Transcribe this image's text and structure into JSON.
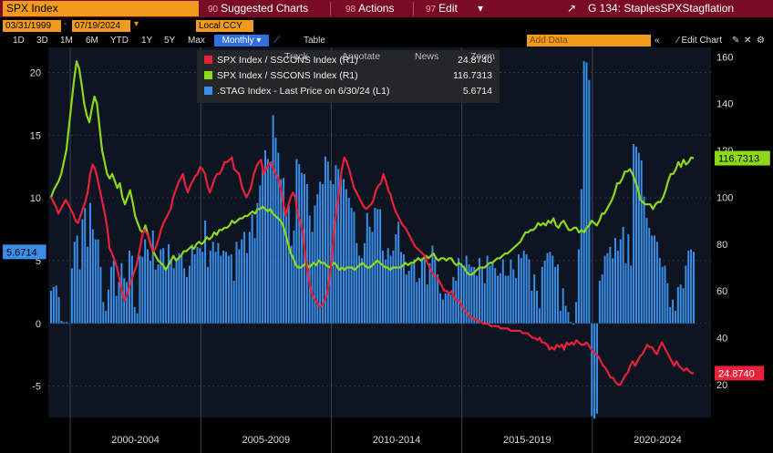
{
  "window": {
    "ticker": "SPX Index",
    "menus": [
      "Suggested Charts",
      "Actions",
      "Edit"
    ],
    "menu_codes": [
      "90",
      "98",
      "97"
    ],
    "chart_title": "G 134: StaplesSPXStagflation",
    "chart_title_icon": "export-icon"
  },
  "toolbar": {
    "start_date": "03/31/1999",
    "end_date": "07/19/2024",
    "currency": "Local CCY",
    "ranges": [
      "1D",
      "3D",
      "1M",
      "6M",
      "YTD",
      "1Y",
      "5Y",
      "Max"
    ],
    "periodicity": "Monthly",
    "table_label": "Table",
    "add_data_placeholder": "Add Data",
    "edit_chart": "Edit Chart",
    "overlay_labels": [
      "Track",
      "Annotate",
      "News",
      "Zoom"
    ]
  },
  "legend": [
    {
      "label": "SPX Index / SSCONS Index (R1)",
      "value": "24.8740",
      "color": "#e8203a"
    },
    {
      "label": "SPX Index / SSCONS Index (R1)",
      "value": "116.7313",
      "color": "#8ed81a"
    },
    {
      "label": ".STAG Index - Last Price on 6/30/24 (L1)",
      "value": "5.6714",
      "color": "#3a8ee8"
    }
  ],
  "chart_data": {
    "type": "bar+line",
    "x_labels": [
      "2000-2004",
      "2005-2009",
      "2010-2014",
      "2015-2019",
      "2020-2024"
    ],
    "left_axis": {
      "ticks": [
        -5,
        0,
        5,
        10,
        15,
        20
      ],
      "range": [
        -7.5,
        22
      ]
    },
    "right_axis": {
      "ticks": [
        20,
        40,
        60,
        80,
        100,
        120,
        140,
        160
      ],
      "range": [
        6,
        164
      ]
    },
    "last_value_labels": {
      "stag": "5.6714",
      "green": "116.7313",
      "red": "24.8740"
    },
    "stag_bars": [
      2.6,
      2.9,
      3,
      2.1,
      0.2,
      0.1,
      0.1,
      0,
      4.4,
      6.5,
      7,
      4.3,
      8.3,
      9.2,
      6.1,
      9.6,
      7.5,
      6.7,
      6.7,
      4.5,
      1.7,
      1,
      2.7,
      4.5,
      5,
      2.2,
      3.3,
      4.8,
      3.6,
      3.3,
      5.8,
      5.4,
      1.3,
      0.8,
      5.4,
      5.3,
      6.7,
      5.9,
      5,
      7.4,
      4.3,
      4.7,
      5.9,
      6,
      4.5,
      6.3,
      5,
      4.4,
      5.2,
      5.6,
      5.4,
      4.4,
      3.7,
      4.6,
      6.3,
      5.5,
      6.1,
      6,
      5.7,
      8.2,
      4.5,
      5.8,
      6.5,
      5.7,
      6.4,
      5.4,
      5.8,
      5.7,
      5.4,
      5.5,
      3.4,
      6.5,
      5.9,
      6.7,
      7.3,
      5.6,
      7.3,
      8.7,
      6.8,
      9.6,
      11,
      12.4,
      13.8,
      13.1,
      12.8,
      16.6,
      14.8,
      13.6,
      11.5,
      11.6,
      8.6,
      9.4,
      6.2,
      7.4,
      13.1,
      12.7,
      12,
      11.9,
      11.1,
      8.6,
      7.3,
      9.4,
      10.3,
      11.3,
      11.1,
      13.3,
      12.9,
      11.4,
      11.1,
      12.6,
      12.3,
      11.8,
      11.5,
      10.7,
      10,
      9.2,
      8.9,
      6.4,
      5.4,
      5.2,
      6.4,
      8.8,
      7.7,
      7.3,
      9.2,
      9.1,
      9.1,
      5.8,
      5.1,
      6,
      5.4,
      5.8,
      7.1,
      8.1,
      5.7,
      5.5,
      3.9,
      4.2,
      4.7,
      5.1,
      3.3,
      3.6,
      5.2,
      5.3,
      3.1,
      4.8,
      6.2,
      5.3,
      3.9,
      2.4,
      1.9,
      2.4,
      2.4,
      2.3,
      3.7,
      3.4,
      5.2,
      4.8,
      4.6,
      5.4,
      4.7,
      4.5,
      4.5,
      3.8,
      5.2,
      4.5,
      3.2,
      5.4,
      4.6,
      4.8,
      4.4,
      3.8,
      4,
      5.1,
      3.8,
      3.8,
      5.1,
      4.3,
      3.6,
      5.5,
      5.2,
      5.8,
      5.5,
      5.1,
      2.6,
      3.9,
      2.6,
      1.2,
      4.5,
      5,
      5.6,
      5.7,
      5.4,
      4.5,
      4.7,
      1,
      2.8,
      1.4,
      0.9,
      0.1,
      -0.1,
      1.7,
      5.9,
      10.7,
      20.9,
      20.8,
      19.4,
      -7.4,
      -7.6,
      -7.2,
      3.4,
      3.9,
      5.4,
      5.6,
      6.1,
      5.2,
      6.8,
      5.8,
      6.7,
      7.7,
      4.8,
      7.1,
      4.6,
      14.3,
      14.1,
      13.6,
      13,
      10.1,
      8.4,
      7.6,
      7,
      7,
      6.5,
      5.2,
      4.5,
      4.6,
      3.2,
      1.3,
      1.9,
      1,
      2.9,
      3.1,
      2.8,
      4.6,
      5.8,
      5.9,
      5.7
    ],
    "green_series": [
      100,
      103,
      105,
      107,
      110,
      115,
      120,
      130,
      140,
      150,
      158,
      155,
      148,
      140,
      135,
      132,
      138,
      143,
      140,
      130,
      120,
      115,
      110,
      108,
      110,
      107,
      104,
      106,
      100,
      97,
      100,
      103,
      98,
      92,
      89,
      86,
      85,
      88,
      84,
      80,
      77,
      75,
      73,
      72,
      71,
      69,
      71,
      73,
      75,
      73,
      74,
      75,
      77,
      77,
      78,
      79,
      78,
      80,
      81,
      80,
      81,
      83,
      82,
      83,
      85,
      84,
      86,
      86,
      87,
      87,
      88,
      90,
      89,
      90,
      91,
      91,
      92,
      92,
      93,
      94,
      93,
      95,
      95,
      96,
      95,
      94,
      95,
      93,
      92,
      91,
      90,
      88,
      84,
      80,
      76,
      74,
      71,
      70,
      70,
      71,
      72,
      70,
      71,
      72,
      71,
      73,
      72,
      72,
      71,
      70,
      71,
      72,
      71,
      69,
      70,
      69,
      70,
      70,
      70,
      69,
      70,
      71,
      72,
      71,
      70,
      70,
      71,
      72,
      73,
      72,
      71,
      70,
      70,
      69,
      70,
      70,
      70,
      70,
      71,
      72,
      71,
      72,
      72,
      73,
      74,
      73,
      74,
      75,
      74,
      75,
      76,
      74,
      73,
      74,
      74,
      73,
      74,
      74,
      72,
      71,
      72,
      71,
      70,
      68,
      67,
      67,
      68,
      69,
      70,
      70,
      70,
      71,
      72,
      72,
      73,
      74,
      74,
      75,
      76,
      76,
      77,
      78,
      79,
      80,
      81,
      83,
      85,
      85,
      86,
      86,
      87,
      89,
      88,
      89,
      88,
      90,
      89,
      91,
      88,
      87,
      89,
      90,
      88,
      86,
      86,
      87,
      87,
      85,
      86,
      85,
      87,
      88,
      90,
      89,
      88,
      90,
      93,
      93,
      95,
      97,
      99,
      102,
      106,
      106,
      108,
      111,
      111,
      112,
      110,
      107,
      104,
      99,
      98,
      97,
      97,
      97,
      95,
      97,
      98,
      98,
      100,
      103,
      107,
      110,
      110,
      112,
      115,
      113,
      116,
      114,
      115,
      117,
      116.7
    ],
    "red_series": [
      100,
      98,
      96,
      93,
      95,
      97,
      99,
      97,
      95,
      93,
      90,
      89,
      92,
      95,
      98,
      102,
      110,
      114,
      112,
      108,
      103,
      98,
      93,
      87,
      78,
      76,
      73,
      70,
      65,
      60,
      56,
      58,
      62,
      65,
      68,
      71,
      76,
      82,
      86,
      85,
      83,
      79,
      77,
      79,
      82,
      86,
      89,
      91,
      93,
      95,
      100,
      103,
      106,
      108,
      110,
      105,
      102,
      105,
      107,
      109,
      110,
      113,
      112,
      110,
      105,
      102,
      105,
      108,
      110,
      110,
      112,
      115,
      115,
      116,
      117,
      112,
      111,
      110,
      105,
      102,
      100,
      102,
      105,
      110,
      113,
      115,
      116,
      110,
      112,
      114,
      115,
      112,
      110,
      108,
      104,
      98,
      92,
      96,
      100,
      102,
      100,
      92,
      90,
      85,
      75,
      68,
      62,
      58,
      56,
      55,
      53,
      54,
      56,
      59,
      66,
      75,
      88,
      95,
      103,
      112,
      117,
      115,
      112,
      108,
      104,
      102,
      100,
      98,
      96,
      95,
      96,
      97,
      99,
      103,
      105,
      106,
      110,
      107,
      103,
      101,
      97,
      94,
      92,
      90,
      88,
      87,
      85,
      83,
      81,
      79,
      78,
      77,
      76,
      75,
      72,
      70,
      68,
      66,
      66,
      64,
      62,
      60,
      60,
      59,
      60,
      57,
      56,
      56,
      54,
      52,
      51,
      49,
      49,
      48,
      48,
      47,
      47,
      46,
      46,
      46,
      45,
      45,
      45,
      45,
      44,
      44,
      44,
      44,
      43,
      43,
      43,
      43,
      43,
      42,
      42,
      42,
      41,
      40,
      40,
      39,
      40,
      38,
      38,
      37,
      35,
      36,
      35,
      37,
      36,
      37,
      35,
      38,
      37,
      38,
      37,
      39,
      38,
      37,
      37,
      38,
      37,
      35,
      34,
      33,
      32,
      30,
      28,
      27,
      25,
      23,
      23,
      21,
      20,
      20,
      22,
      24,
      25,
      28,
      30,
      28,
      30,
      32,
      33,
      35,
      37,
      36,
      36,
      34,
      33,
      36,
      38,
      36,
      34,
      32,
      30,
      28,
      30,
      28,
      27,
      26,
      27,
      26,
      25,
      24.9
    ]
  }
}
